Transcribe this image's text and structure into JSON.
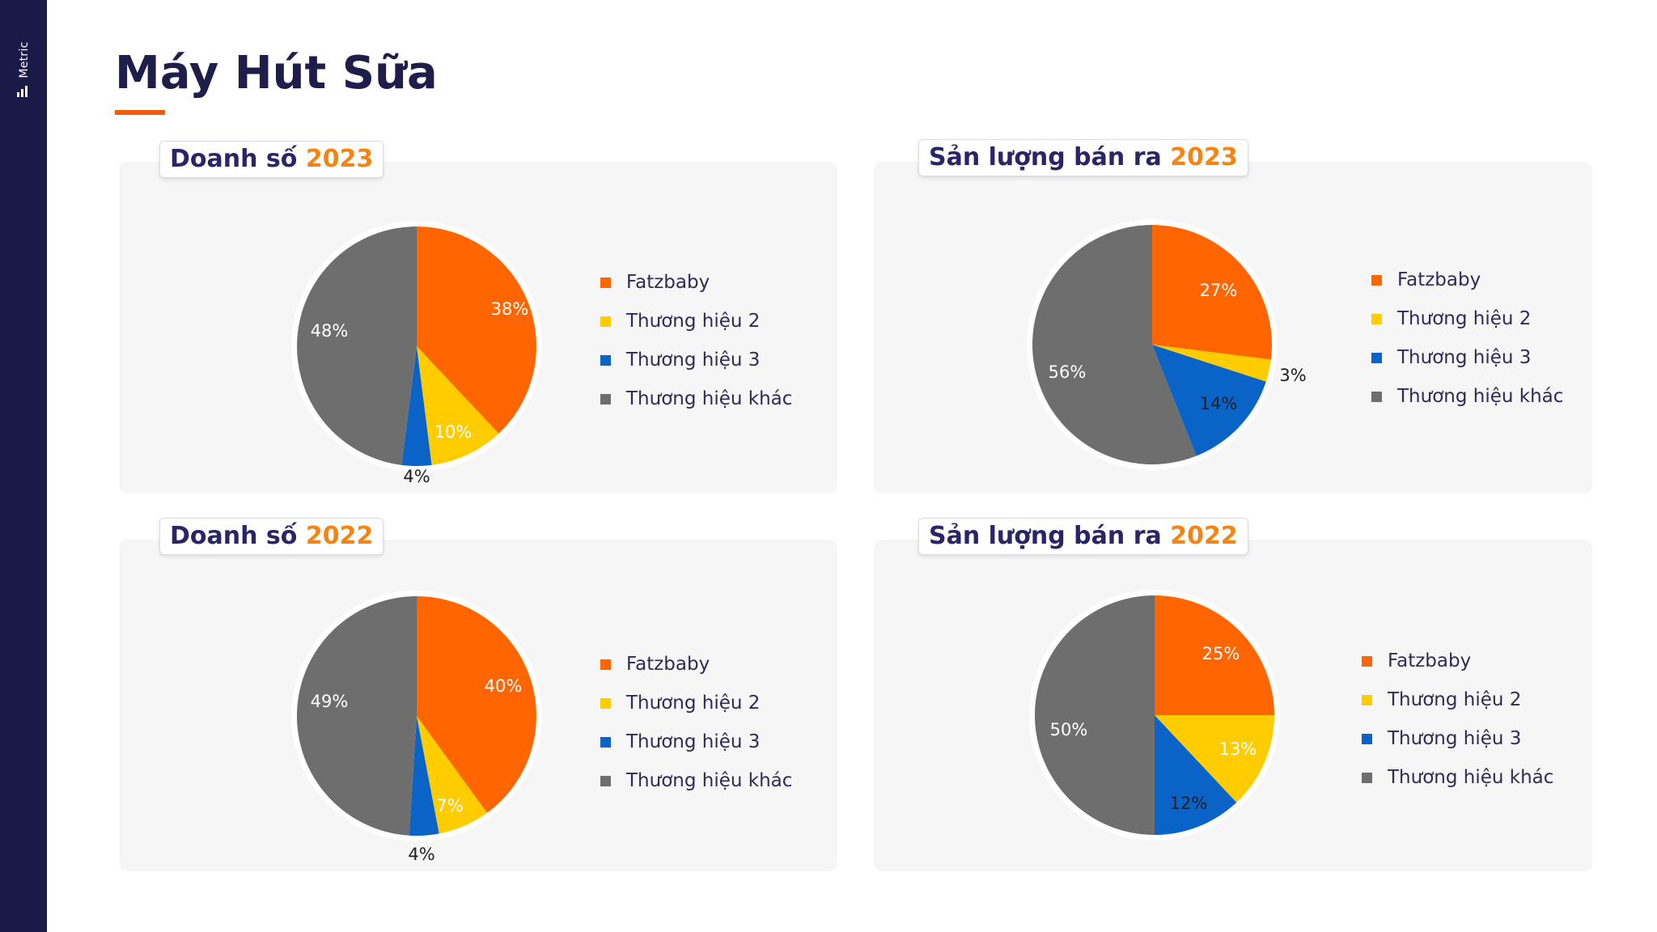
{
  "title": "Máy Hút Sữa",
  "brand": "Metric",
  "colors": {
    "orange": "#ff6500",
    "yellow": "#ffcc00",
    "blue": "#0a64c8",
    "gray": "#6e6e6e",
    "navy": "#1b1947",
    "accent": "#f58512"
  },
  "chart_data": [
    {
      "type": "pie",
      "title": "Doanh số 2023",
      "title_prefix": "Doanh số",
      "title_year": "2023",
      "categories": [
        "Fatzbaby",
        "Thương hiệu 2",
        "Thương hiệu 3",
        "Thương hiệu khác"
      ],
      "values": [
        38,
        10,
        4,
        48
      ],
      "labels": [
        "38%",
        "10%",
        "4%",
        "48%"
      ]
    },
    {
      "type": "pie",
      "title": "Sản lượng bán ra 2023",
      "title_prefix": "Sản lượng bán ra",
      "title_year": "2023",
      "categories": [
        "Fatzbaby",
        "Thương hiệu 2",
        "Thương hiệu 3",
        "Thương hiệu khác"
      ],
      "values": [
        27,
        3,
        14,
        56
      ],
      "labels": [
        "27%",
        "3%",
        "14%",
        "56%"
      ]
    },
    {
      "type": "pie",
      "title": "Doanh số 2022",
      "title_prefix": "Doanh số",
      "title_year": "2022",
      "categories": [
        "Fatzbaby",
        "Thương hiệu 2",
        "Thương hiệu 3",
        "Thương hiệu khác"
      ],
      "values": [
        40,
        7,
        4,
        49
      ],
      "labels": [
        "40%",
        "7%",
        "4%",
        "49%"
      ]
    },
    {
      "type": "pie",
      "title": "Sản lượng bán ra 2022",
      "title_prefix": "Sản lượng bán ra",
      "title_year": "2022",
      "categories": [
        "Fatzbaby",
        "Thương hiệu 2",
        "Thương hiệu 3",
        "Thương hiệu khác"
      ],
      "values": [
        25,
        13,
        12,
        50
      ],
      "labels": [
        "25%",
        "13%",
        "12%",
        "50%"
      ]
    }
  ]
}
